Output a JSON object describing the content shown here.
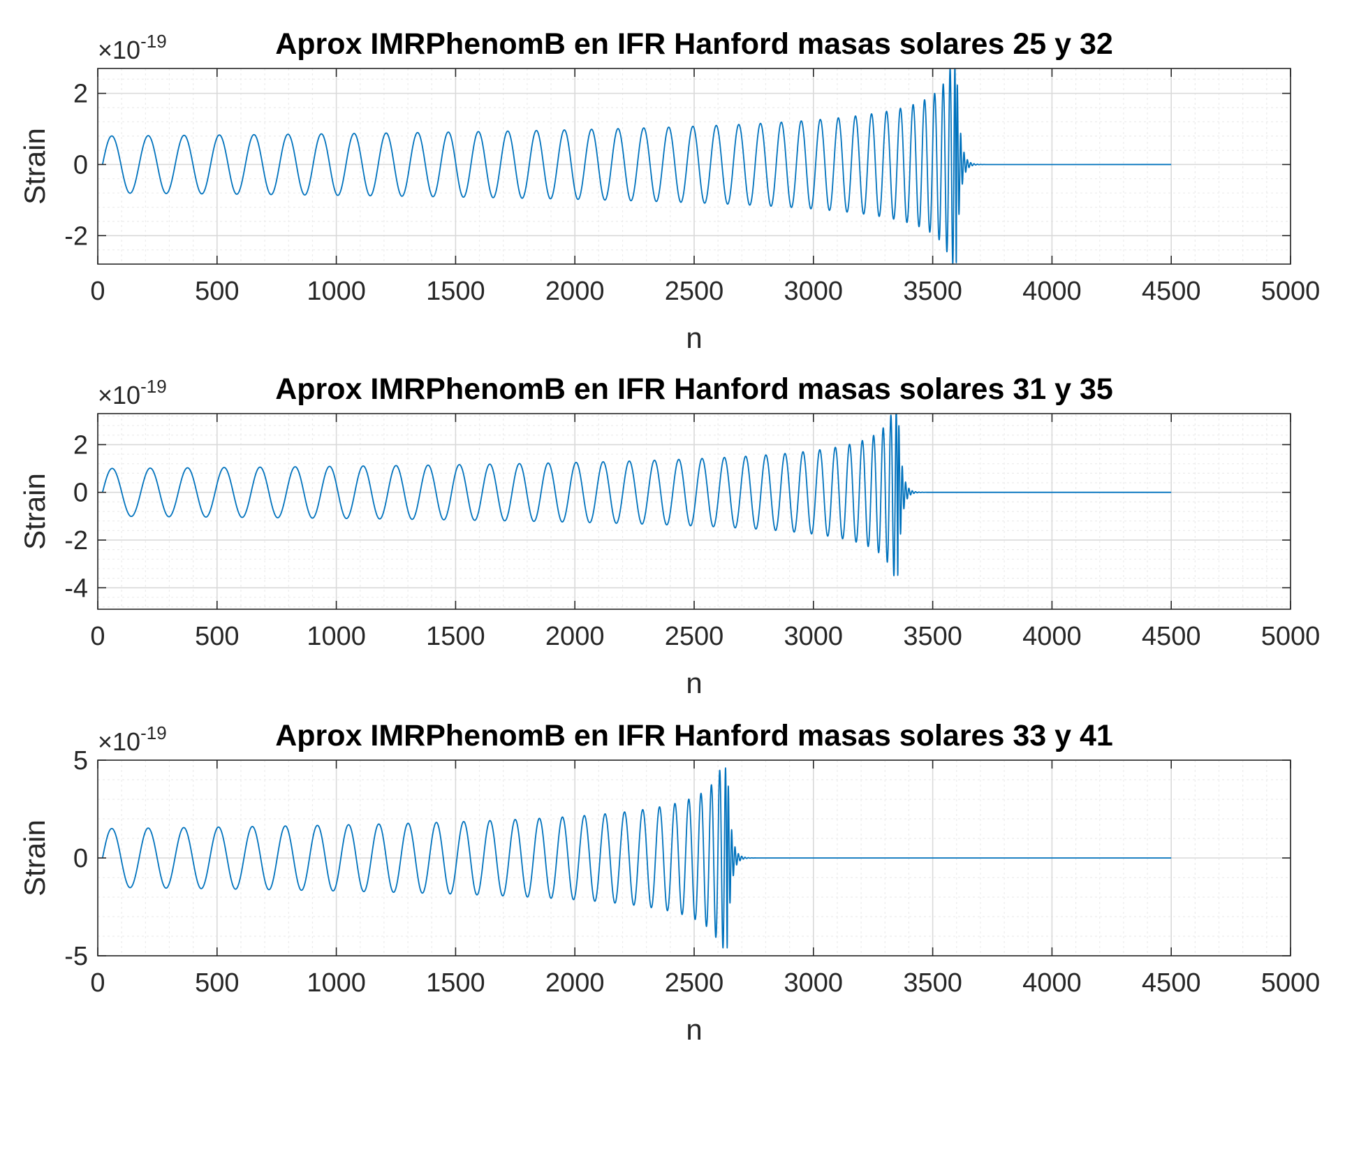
{
  "figure": {
    "background": "#ffffff",
    "line_color": "#0072bd",
    "grid_major_color": "#d9d9d9",
    "grid_minor_color": "#ececec",
    "axes_color": "#262626"
  },
  "chart_data": [
    {
      "type": "line",
      "title": "Aprox IMRPhenomB en IFR Hanford masas solares 25 y 32",
      "xlabel": "n",
      "ylabel": "Strain",
      "y_multiplier": {
        "base": "×10",
        "exponent": "-19"
      },
      "xlim": [
        0,
        5000
      ],
      "ylim": [
        -2.8,
        2.7
      ],
      "xticks": [
        0,
        500,
        1000,
        1500,
        2000,
        2500,
        3000,
        3500,
        4000,
        4500,
        5000
      ],
      "xtick_labels": [
        "0",
        "500",
        "1000",
        "1500",
        "2000",
        "2500",
        "3000",
        "3500",
        "4000",
        "4500",
        "5000"
      ],
      "yticks": [
        -2,
        0,
        2
      ],
      "ytick_labels": [
        "-2",
        "0",
        "2"
      ],
      "grid": true,
      "minor_grid": true,
      "series": [
        {
          "n_start": 20,
          "n_end": 4500,
          "merger_n": 3600,
          "start_amplitude": 0.8,
          "peak_amplitude": 2.8,
          "cycles": 37,
          "ringdown_length": 60
        }
      ]
    },
    {
      "type": "line",
      "title": "Aprox IMRPhenomB en IFR Hanford masas solares 31 y 35",
      "xlabel": "n",
      "ylabel": "Strain",
      "y_multiplier": {
        "base": "×10",
        "exponent": "-19"
      },
      "xlim": [
        0,
        5000
      ],
      "ylim": [
        -4.9,
        3.3
      ],
      "xticks": [
        0,
        500,
        1000,
        1500,
        2000,
        2500,
        3000,
        3500,
        4000,
        4500,
        5000
      ],
      "xtick_labels": [
        "0",
        "500",
        "1000",
        "1500",
        "2000",
        "2500",
        "3000",
        "3500",
        "4000",
        "4500",
        "5000"
      ],
      "yticks": [
        -4,
        -2,
        0,
        2
      ],
      "ytick_labels": [
        "-4",
        "-2",
        "0",
        "2"
      ],
      "grid": true,
      "minor_grid": true,
      "series": [
        {
          "n_start": 20,
          "n_end": 4500,
          "merger_n": 3355,
          "start_amplitude": 1.0,
          "peak_amplitude": 3.5,
          "cycles": 33,
          "ringdown_length": 60
        }
      ]
    },
    {
      "type": "line",
      "title": "Aprox IMRPhenomB en IFR Hanford masas solares 33 y 41",
      "xlabel": "n",
      "ylabel": "Strain",
      "y_multiplier": {
        "base": "×10",
        "exponent": "-19"
      },
      "xlim": [
        0,
        5000
      ],
      "ylim": [
        -5,
        5
      ],
      "xticks": [
        0,
        500,
        1000,
        1500,
        2000,
        2500,
        3000,
        3500,
        4000,
        4500,
        5000
      ],
      "xtick_labels": [
        "0",
        "500",
        "1000",
        "1500",
        "2000",
        "2500",
        "3000",
        "3500",
        "4000",
        "4500",
        "5000"
      ],
      "yticks": [
        -5,
        0,
        5
      ],
      "ytick_labels": [
        "-5",
        "0",
        "5"
      ],
      "grid": true,
      "minor_grid": true,
      "series": [
        {
          "n_start": 20,
          "n_end": 4500,
          "merger_n": 2640,
          "start_amplitude": 1.5,
          "peak_amplitude": 4.6,
          "cycles": 27,
          "ringdown_length": 60
        }
      ]
    }
  ]
}
